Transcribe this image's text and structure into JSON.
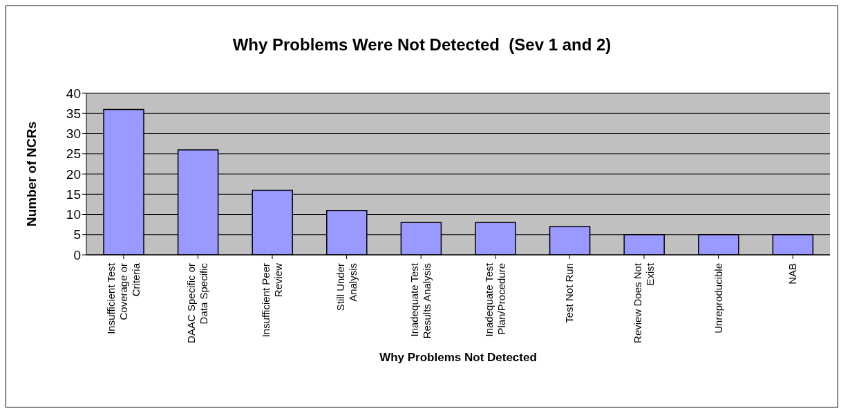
{
  "chart_data": {
    "type": "bar",
    "title": "Why Problems Were Not Detected  (Sev 1 and 2)",
    "xlabel": "Why Problems Not Detected",
    "ylabel": "Number of NCRs",
    "categories": [
      "Insufficient Test Coverage or Criteria",
      "DAAC Specific or Data Specific",
      "Insufficient Peer Review",
      "Still Under Analysis",
      "Inadequate Test Results Analysis",
      "Inadequate Test Plan/Procedure",
      "Test Not Run",
      "Review Does Not Exist",
      "Unreproducible",
      "NAB"
    ],
    "values": [
      36,
      26,
      16,
      11,
      8,
      8,
      7,
      5,
      5,
      5
    ],
    "color": "#9999ff",
    "ylim": [
      0,
      40
    ],
    "yticks": [
      0,
      5,
      10,
      15,
      20,
      25,
      30,
      35,
      40
    ],
    "grid": "y",
    "legend": false
  }
}
